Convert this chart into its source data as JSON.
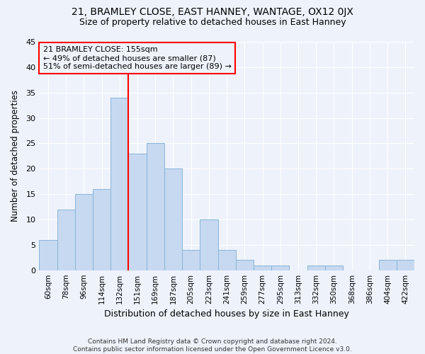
{
  "title1": "21, BRAMLEY CLOSE, EAST HANNEY, WANTAGE, OX12 0JX",
  "title2": "Size of property relative to detached houses in East Hanney",
  "xlabel": "Distribution of detached houses by size in East Hanney",
  "ylabel": "Number of detached properties",
  "footer1": "Contains HM Land Registry data © Crown copyright and database right 2024.",
  "footer2": "Contains public sector information licensed under the Open Government Licence v3.0.",
  "bin_labels": [
    "60sqm",
    "78sqm",
    "96sqm",
    "114sqm",
    "132sqm",
    "151sqm",
    "169sqm",
    "187sqm",
    "205sqm",
    "223sqm",
    "241sqm",
    "259sqm",
    "277sqm",
    "295sqm",
    "313sqm",
    "332sqm",
    "350sqm",
    "368sqm",
    "386sqm",
    "404sqm",
    "422sqm"
  ],
  "bar_values": [
    6,
    12,
    15,
    16,
    34,
    23,
    25,
    20,
    4,
    10,
    4,
    2,
    1,
    1,
    0,
    1,
    1,
    0,
    0,
    2,
    2
  ],
  "bar_color": "#c6d9f0",
  "bar_edge_color": "#8ab4d8",
  "vline_idx": 5,
  "vline_color": "red",
  "annotation_title": "21 BRAMLEY CLOSE: 155sqm",
  "annotation_line1": "← 49% of detached houses are smaller (87)",
  "annotation_line2": "51% of semi-detached houses are larger (89) →",
  "annotation_box_color": "red",
  "ylim": [
    0,
    45
  ],
  "yticks": [
    0,
    5,
    10,
    15,
    20,
    25,
    30,
    35,
    40,
    45
  ],
  "background_color": "#eef3fb",
  "grid_color": "#ffffff",
  "title1_fontsize": 10,
  "title2_fontsize": 9
}
